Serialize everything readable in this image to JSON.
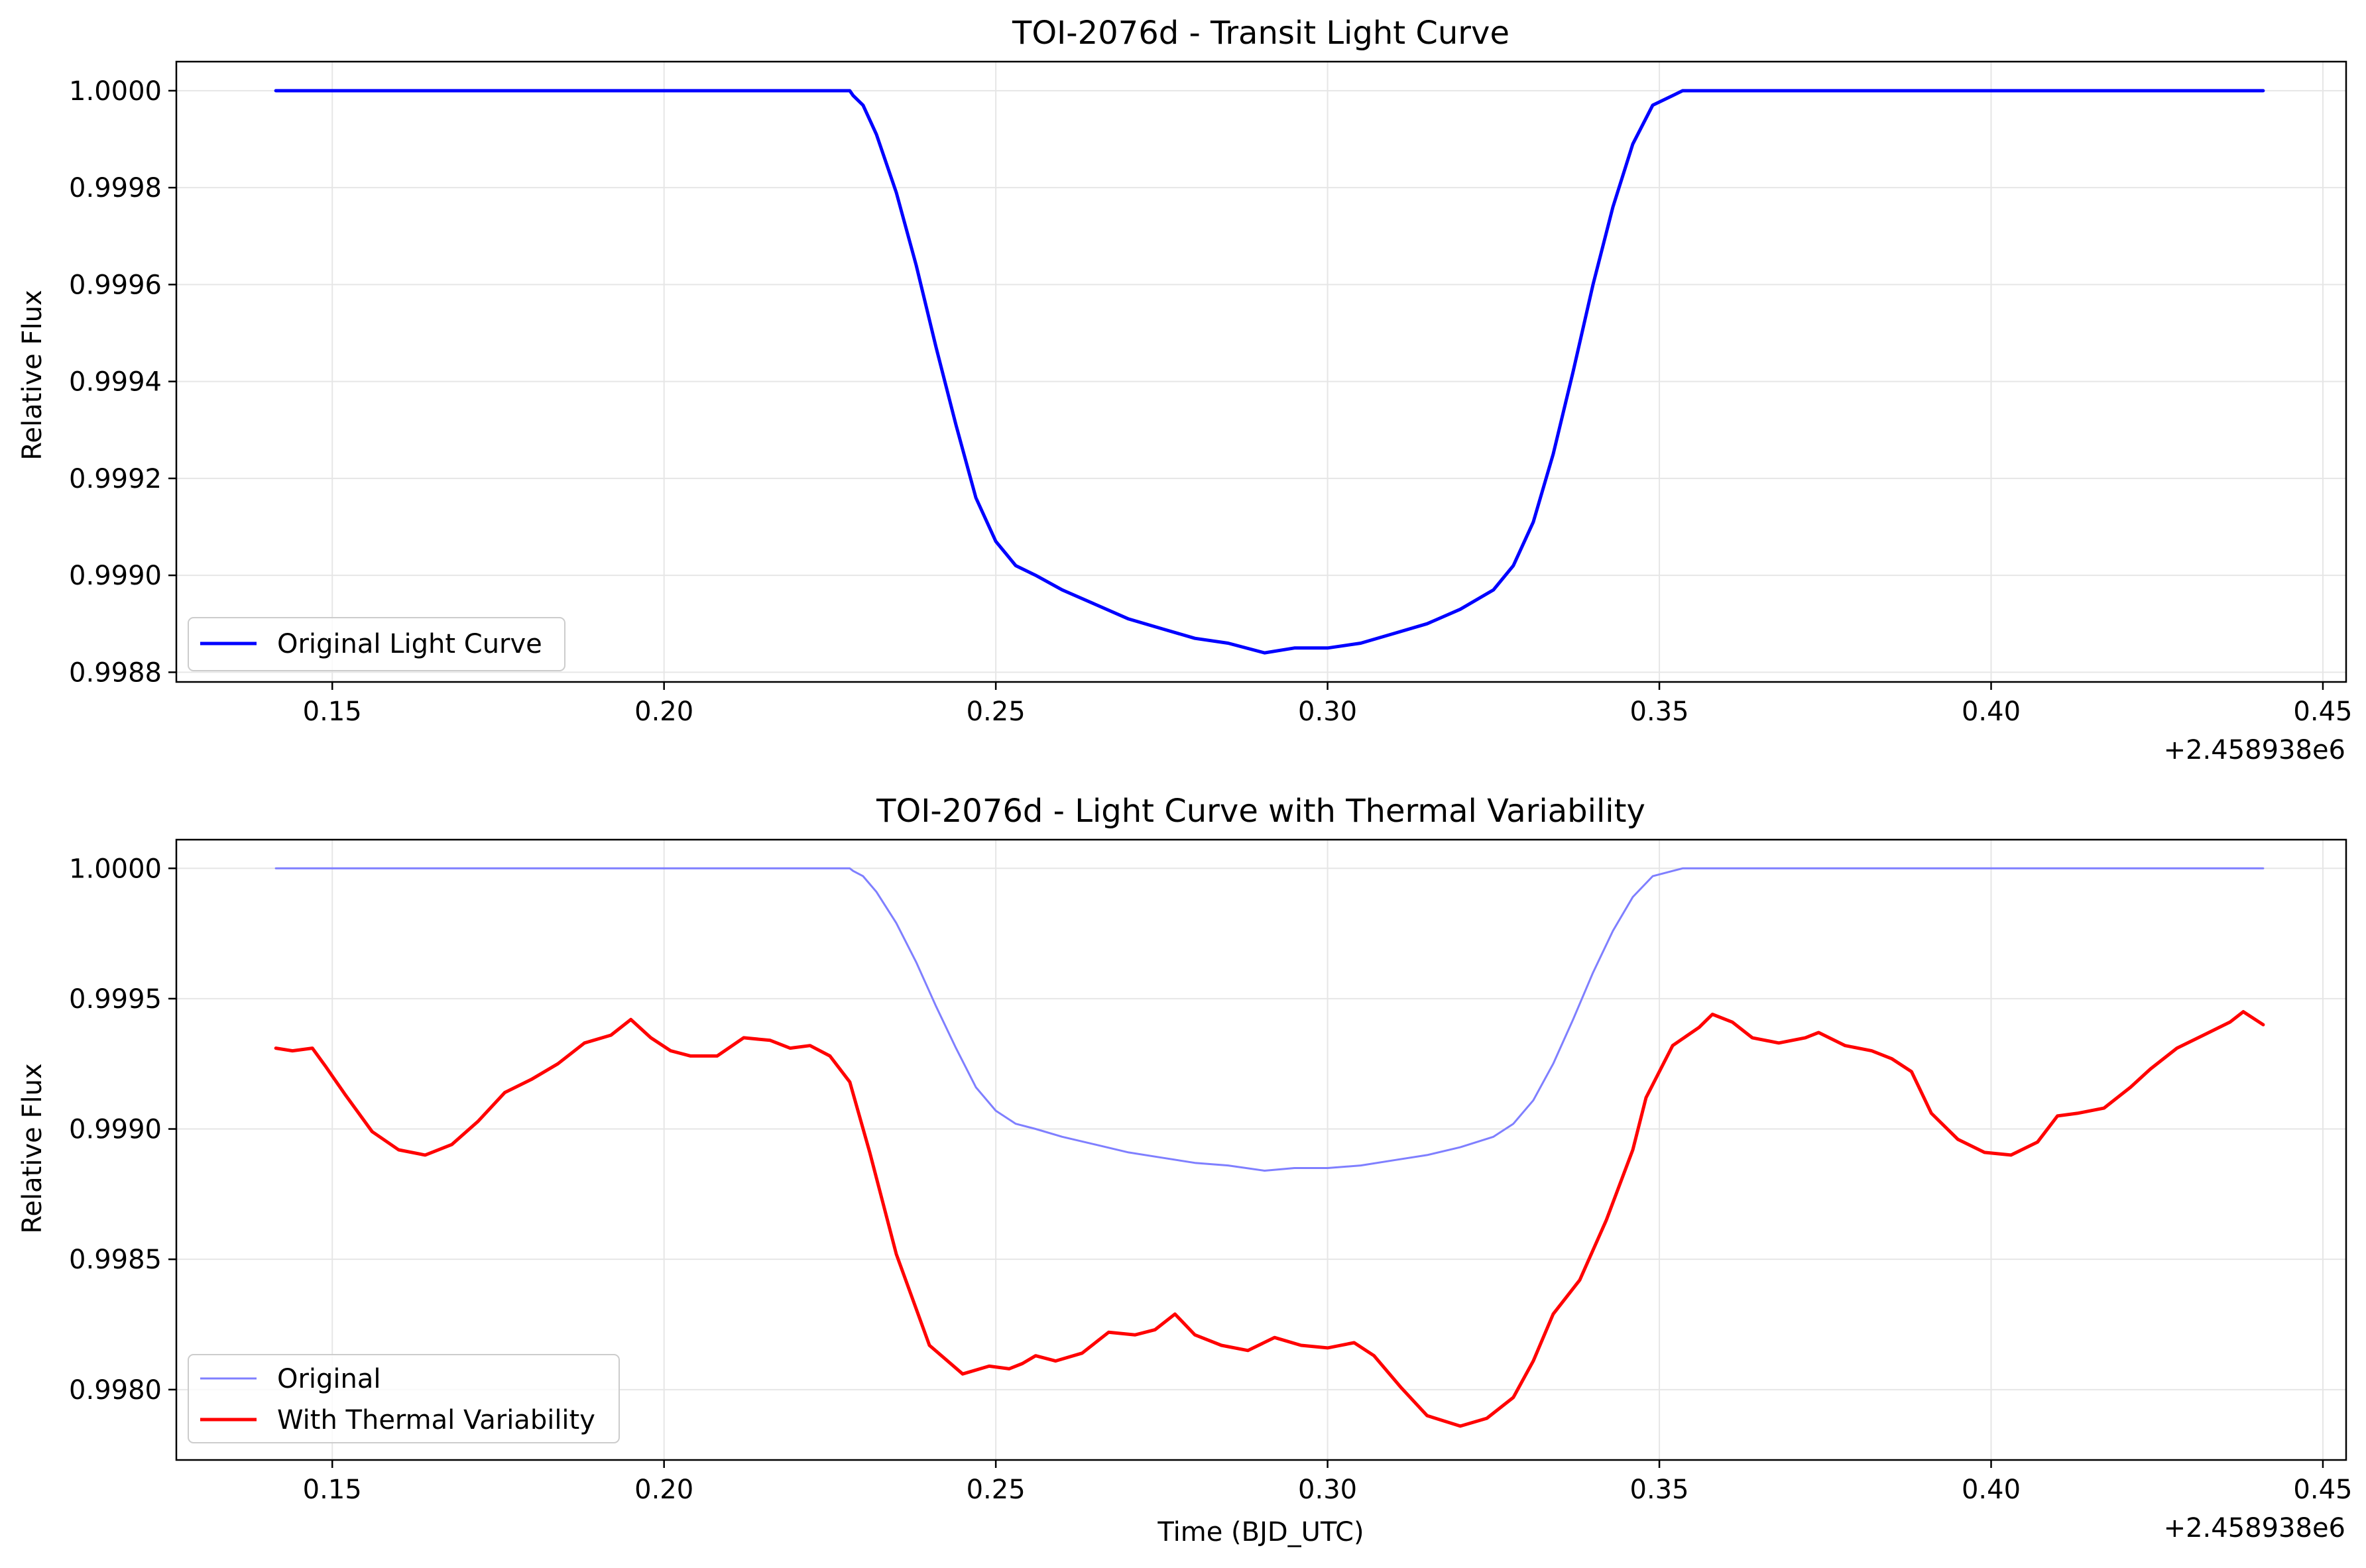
{
  "colors": {
    "original": "#0000ff",
    "original_faded": "#7f7fff",
    "thermal": "#ff0000",
    "grid": "#e6e6e6"
  },
  "chart_data": [
    {
      "type": "line",
      "title": "TOI-2076d - Transit Light Curve",
      "xlabel": "",
      "ylabel": "Relative Flux",
      "x_offset_label": "+2.458938e6",
      "xlim": [
        0.1265,
        0.4535
      ],
      "ylim": [
        0.99878,
        1.00006
      ],
      "xticks": [
        "0.15",
        "0.20",
        "0.25",
        "0.30",
        "0.35",
        "0.40",
        "0.45"
      ],
      "yticks": [
        "0.9988",
        "0.9990",
        "0.9992",
        "0.9994",
        "0.9996",
        "0.9998",
        "1.0000"
      ],
      "grid": true,
      "legend_position": "lower-left",
      "series": [
        {
          "name": "Original Light Curve",
          "color": "#0000ff",
          "x": [
            0.1415,
            0.228,
            0.2285,
            0.23,
            0.232,
            0.235,
            0.238,
            0.241,
            0.244,
            0.247,
            0.25,
            0.253,
            0.256,
            0.26,
            0.265,
            0.27,
            0.275,
            0.28,
            0.285,
            0.2905,
            0.295,
            0.3,
            0.305,
            0.31,
            0.315,
            0.32,
            0.325,
            0.328,
            0.331,
            0.334,
            0.337,
            0.34,
            0.343,
            0.346,
            0.349,
            0.352,
            0.3535,
            0.354,
            0.441
          ],
          "y": [
            1.0,
            1.0,
            0.99999,
            0.99997,
            0.99991,
            0.99979,
            0.99964,
            0.99947,
            0.99931,
            0.99916,
            0.99907,
            0.99902,
            0.999,
            0.99897,
            0.99894,
            0.99891,
            0.99889,
            0.99887,
            0.99886,
            0.99884,
            0.99885,
            0.99885,
            0.99886,
            0.99888,
            0.9989,
            0.99893,
            0.99897,
            0.99902,
            0.99911,
            0.99925,
            0.99942,
            0.9996,
            0.99976,
            0.99989,
            0.99997,
            0.99999,
            1.0,
            1.0,
            1.0
          ]
        }
      ]
    },
    {
      "type": "line",
      "title": "TOI-2076d - Light Curve with Thermal Variability",
      "xlabel": "Time (BJD_UTC)",
      "ylabel": "Relative Flux",
      "x_offset_label": "+2.458938e6",
      "xlim": [
        0.1265,
        0.4535
      ],
      "ylim": [
        0.99773,
        1.00011
      ],
      "xticks": [
        "0.15",
        "0.20",
        "0.25",
        "0.30",
        "0.35",
        "0.40",
        "0.45"
      ],
      "yticks": [
        "0.9980",
        "0.9985",
        "0.9990",
        "0.9995",
        "1.0000"
      ],
      "grid": true,
      "legend_position": "lower-left",
      "series": [
        {
          "name": "Original",
          "color": "#7f7fff",
          "x": [
            0.1415,
            0.228,
            0.2285,
            0.23,
            0.232,
            0.235,
            0.238,
            0.241,
            0.244,
            0.247,
            0.25,
            0.253,
            0.256,
            0.26,
            0.265,
            0.27,
            0.275,
            0.28,
            0.285,
            0.2905,
            0.295,
            0.3,
            0.305,
            0.31,
            0.315,
            0.32,
            0.325,
            0.328,
            0.331,
            0.334,
            0.337,
            0.34,
            0.343,
            0.346,
            0.349,
            0.352,
            0.3535,
            0.354,
            0.441
          ],
          "y": [
            1.0,
            1.0,
            0.99999,
            0.99997,
            0.99991,
            0.99979,
            0.99964,
            0.99947,
            0.99931,
            0.99916,
            0.99907,
            0.99902,
            0.999,
            0.99897,
            0.99894,
            0.99891,
            0.99889,
            0.99887,
            0.99886,
            0.99884,
            0.99885,
            0.99885,
            0.99886,
            0.99888,
            0.9989,
            0.99893,
            0.99897,
            0.99902,
            0.99911,
            0.99925,
            0.99942,
            0.9996,
            0.99976,
            0.99989,
            0.99997,
            0.99999,
            1.0,
            1.0,
            1.0
          ]
        },
        {
          "name": "With Thermal Variability",
          "color": "#ff0000",
          "x": [
            0.1415,
            0.144,
            0.147,
            0.149,
            0.152,
            0.156,
            0.16,
            0.164,
            0.168,
            0.172,
            0.176,
            0.18,
            0.184,
            0.188,
            0.192,
            0.195,
            0.198,
            0.201,
            0.204,
            0.208,
            0.212,
            0.216,
            0.219,
            0.222,
            0.225,
            0.228,
            0.231,
            0.235,
            0.24,
            0.245,
            0.249,
            0.252,
            0.254,
            0.256,
            0.259,
            0.263,
            0.267,
            0.271,
            0.274,
            0.277,
            0.28,
            0.284,
            0.288,
            0.292,
            0.296,
            0.3,
            0.304,
            0.307,
            0.311,
            0.315,
            0.32,
            0.324,
            0.328,
            0.331,
            0.334,
            0.338,
            0.342,
            0.346,
            0.348,
            0.352,
            0.356,
            0.358,
            0.361,
            0.364,
            0.368,
            0.372,
            0.374,
            0.378,
            0.382,
            0.385,
            0.388,
            0.391,
            0.395,
            0.399,
            0.403,
            0.407,
            0.41,
            0.413,
            0.417,
            0.421,
            0.424,
            0.428,
            0.432,
            0.436,
            0.438,
            0.441
          ],
          "y": [
            0.99931,
            0.9993,
            0.99931,
            0.99924,
            0.99913,
            0.99899,
            0.99892,
            0.9989,
            0.99894,
            0.99903,
            0.99914,
            0.99919,
            0.99925,
            0.99933,
            0.99936,
            0.99942,
            0.99935,
            0.9993,
            0.99928,
            0.99928,
            0.99935,
            0.99934,
            0.99931,
            0.99932,
            0.99928,
            0.99918,
            0.99891,
            0.99852,
            0.99817,
            0.99806,
            0.99809,
            0.99808,
            0.9981,
            0.99813,
            0.99811,
            0.99814,
            0.99822,
            0.99821,
            0.99823,
            0.99829,
            0.99821,
            0.99817,
            0.99815,
            0.9982,
            0.99817,
            0.99816,
            0.99818,
            0.99813,
            0.99801,
            0.9979,
            0.99786,
            0.99789,
            0.99797,
            0.99811,
            0.99829,
            0.99842,
            0.99865,
            0.99892,
            0.99912,
            0.99932,
            0.99939,
            0.99944,
            0.99941,
            0.99935,
            0.99933,
            0.99935,
            0.99937,
            0.99932,
            0.9993,
            0.99927,
            0.99922,
            0.99906,
            0.99896,
            0.99891,
            0.9989,
            0.99895,
            0.99905,
            0.99906,
            0.99908,
            0.99916,
            0.99923,
            0.99931,
            0.99936,
            0.99941,
            0.99945,
            0.9994
          ]
        }
      ]
    }
  ]
}
